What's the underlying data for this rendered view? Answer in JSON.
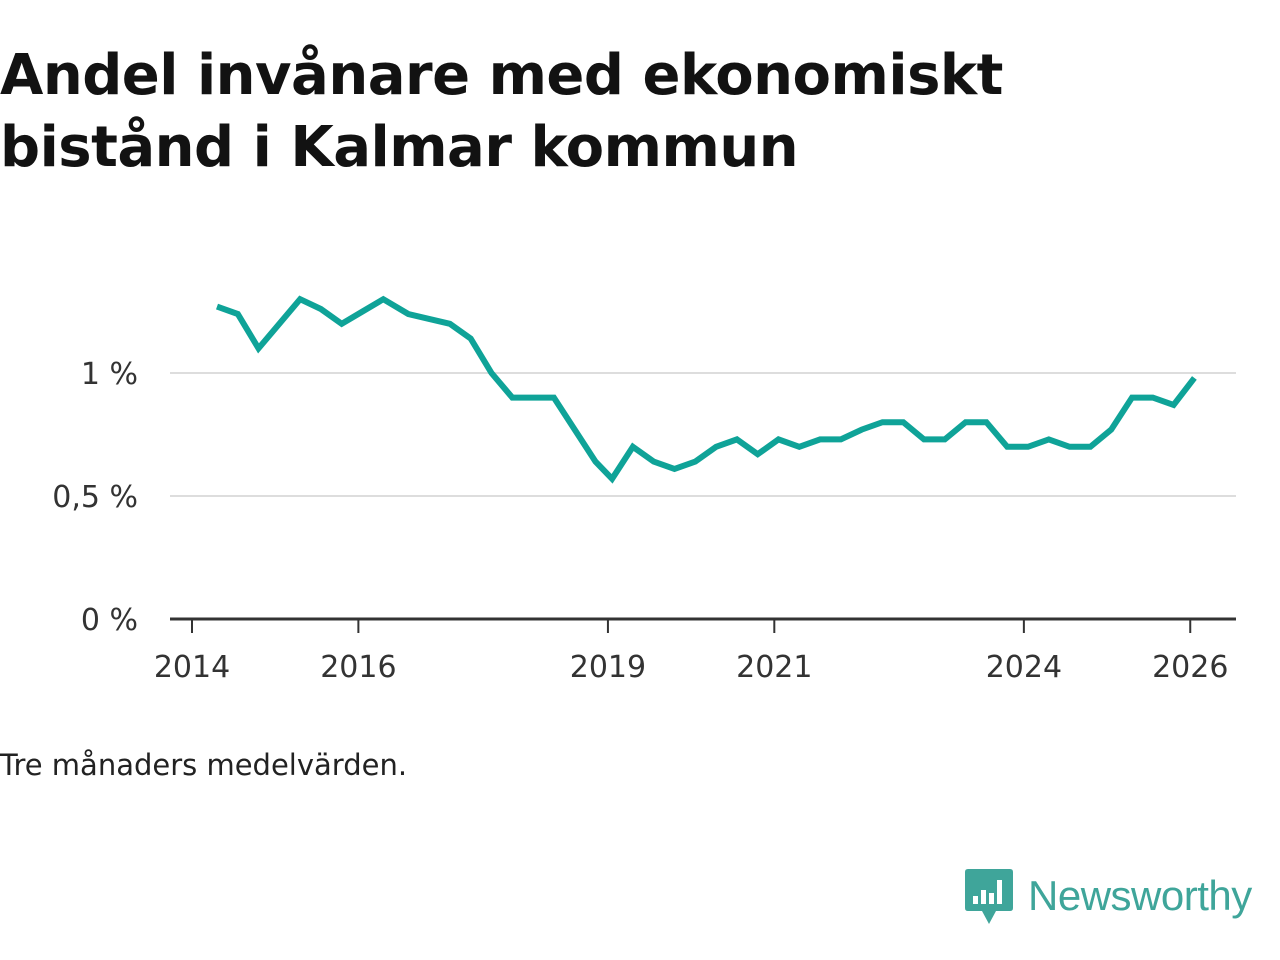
{
  "title": "Andel invånare med ekonomiskt bistånd i Kalmar kommun",
  "caption": "Tre månaders medelvärden.",
  "brand": {
    "name": "Newsworthy",
    "icon": "newsworthy-logo-icon",
    "color": "#3fa59a"
  },
  "chart_data": {
    "type": "line",
    "title": "Andel invånare med ekonomiskt bistånd i Kalmar kommun",
    "xlabel": "",
    "ylabel": "",
    "ylim": [
      0,
      1.5
    ],
    "xlim": [
      2014,
      2026.55
    ],
    "grid": true,
    "x_ticks": [
      {
        "value": 2014,
        "label": "2014"
      },
      {
        "value": 2016,
        "label": "2016"
      },
      {
        "value": 2019,
        "label": "2019"
      },
      {
        "value": 2021,
        "label": "2021"
      },
      {
        "value": 2024,
        "label": "2024"
      },
      {
        "value": 2026,
        "label": "2026"
      }
    ],
    "y_ticks": [
      {
        "value": 0,
        "label": "0 %"
      },
      {
        "value": 0.5,
        "label": "0,5 %"
      },
      {
        "value": 1,
        "label": "1 %"
      }
    ],
    "line_color": "#0fa398",
    "grid_color": "#dddddd",
    "axis_color": "#333333",
    "series": [
      {
        "name": "Andel invånare med ekonomiskt bistånd",
        "x": [
          2014.3,
          2014.55,
          2014.8,
          2015.05,
          2015.3,
          2015.55,
          2015.8,
          2016.05,
          2016.3,
          2016.6,
          2016.85,
          2017.1,
          2017.35,
          2017.6,
          2017.85,
          2018.1,
          2018.35,
          2018.6,
          2018.85,
          2019.05,
          2019.3,
          2019.55,
          2019.8,
          2020.05,
          2020.3,
          2020.55,
          2020.8,
          2021.05,
          2021.3,
          2021.55,
          2021.8,
          2022.05,
          2022.3,
          2022.55,
          2022.8,
          2023.05,
          2023.3,
          2023.55,
          2023.8,
          2024.05,
          2024.3,
          2024.55,
          2024.8,
          2025.05,
          2025.3,
          2025.55,
          2025.8,
          2026.05
        ],
        "values": [
          1.27,
          1.24,
          1.1,
          1.2,
          1.3,
          1.26,
          1.2,
          1.25,
          1.3,
          1.24,
          1.22,
          1.2,
          1.14,
          1.0,
          0.9,
          0.9,
          0.9,
          0.77,
          0.64,
          0.57,
          0.7,
          0.64,
          0.61,
          0.64,
          0.7,
          0.73,
          0.67,
          0.73,
          0.7,
          0.73,
          0.73,
          0.77,
          0.8,
          0.8,
          0.73,
          0.73,
          0.8,
          0.8,
          0.7,
          0.7,
          0.73,
          0.7,
          0.7,
          0.77,
          0.9,
          0.9,
          0.87,
          0.98
        ]
      }
    ]
  }
}
